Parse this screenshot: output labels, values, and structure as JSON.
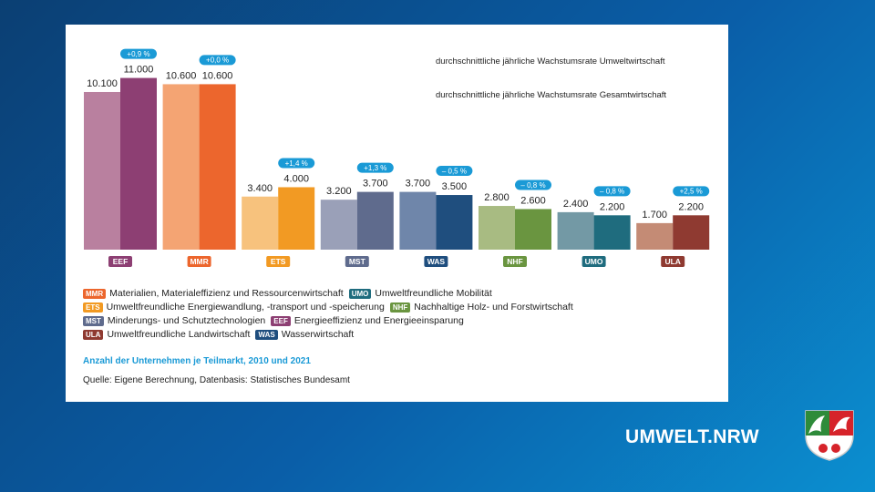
{
  "chart_data": {
    "type": "bar",
    "categories": [
      "EEF",
      "MMR",
      "ETS",
      "MST",
      "WAS",
      "NHF",
      "UMO",
      "ULA"
    ],
    "series": [
      {
        "values": [
          10100,
          10600,
          3400,
          3200,
          3700,
          2800,
          2400,
          1700
        ]
      },
      {
        "values": [
          11000,
          10600,
          4000,
          3700,
          3500,
          2600,
          2200,
          2200
        ]
      }
    ],
    "value_labels_2010": [
      "10.100",
      "10.600",
      "3.400",
      "3.200",
      "3.700",
      "2.800",
      "2.400",
      "1.700"
    ],
    "value_labels_2021": [
      "11.000",
      "10.600",
      "4.000",
      "3.700",
      "3.500",
      "2.600",
      "2.200",
      "2.200"
    ],
    "growth_umwelt": [
      "+0,9 %",
      "+0,0 %",
      "+1,4 %",
      "+1,3 %",
      "– 0,5 %",
      "– 0,8 %",
      "– 0,8 %",
      "+2,5 %"
    ],
    "colors_2010": [
      "#b9809f",
      "#f4a473",
      "#f7c27d",
      "#9aa0b8",
      "#6f86aa",
      "#a8bb82",
      "#7399a5",
      "#c48b75"
    ],
    "colors_2021": [
      "#8d3f73",
      "#ec662d",
      "#f29a23",
      "#5f6b8d",
      "#1f4e7e",
      "#6a9540",
      "#1f6c7e",
      "#8f3a31"
    ],
    "ylim": [
      0,
      11500
    ],
    "legend_growth": [
      "durchschnittliche jährliche Wachstumsrate Umweltwirtschaft",
      "durchschnittliche jährliche Wachstumsrate Gesamtwirtschaft"
    ],
    "title": "Anzahl der Unternehmen je Teilmarkt, 2010 und 2021",
    "source": "Quelle: Eigene Berechnung, Datenbasis: Statistisches Bundesamt"
  },
  "legend": {
    "rows": [
      [
        {
          "code": "MMR",
          "label": "Materialien, Materialeffizienz und Ressourcenwirtschaft",
          "color": "#ec662d"
        },
        {
          "code": "UMO",
          "label": "Umweltfreundliche Mobilität",
          "color": "#1f6c7e"
        }
      ],
      [
        {
          "code": "ETS",
          "label": "Umweltfreundliche Energiewandlung, -transport und -speicherung",
          "color": "#f29a23"
        },
        {
          "code": "NHF",
          "label": "Nachhaltige Holz- und Forstwirtschaft",
          "color": "#6a9540"
        }
      ],
      [
        {
          "code": "MST",
          "label": "Minderungs- und Schutztechnologien",
          "color": "#5f6b8d"
        },
        {
          "code": "EEF",
          "label": "Energieeffizienz und Energieeinsparung",
          "color": "#8d3f73"
        }
      ],
      [
        {
          "code": "ULA",
          "label": "Umweltfreundliche Landwirtschaft",
          "color": "#8f3a31"
        },
        {
          "code": "WAS",
          "label": "Wasserwirtschaft",
          "color": "#1f4e7e"
        }
      ]
    ]
  },
  "brand": "UMWELT.NRW"
}
